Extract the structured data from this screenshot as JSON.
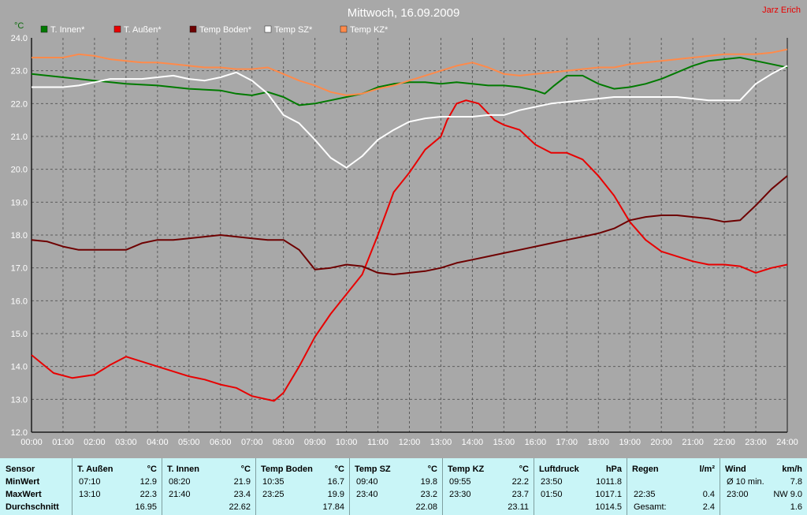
{
  "title": "Mittwoch, 16.09.2009",
  "author": "Jarz Erich",
  "chart_data": {
    "type": "line",
    "y_unit": "°C",
    "ylim": [
      12.0,
      24.0
    ],
    "yticks": [
      "12.0",
      "13.0",
      "14.0",
      "15.0",
      "16.0",
      "17.0",
      "18.0",
      "19.0",
      "20.0",
      "21.0",
      "22.0",
      "23.0",
      "24.0"
    ],
    "xlim": [
      0,
      24
    ],
    "xticks": [
      "00:00",
      "01:00",
      "02:00",
      "03:00",
      "04:00",
      "05:00",
      "06:00",
      "07:00",
      "08:00",
      "09:00",
      "10:00",
      "11:00",
      "12:00",
      "13:00",
      "14:00",
      "15:00",
      "16:00",
      "17:00",
      "18:00",
      "19:00",
      "20:00",
      "21:00",
      "22:00",
      "23:00",
      "24:00"
    ],
    "grid": true,
    "legend_position": "top",
    "series": [
      {
        "name": "T. Innen*",
        "color": "#007a00",
        "x": [
          0,
          1,
          2,
          3,
          4,
          5,
          6,
          6.5,
          7,
          7.5,
          8,
          8.5,
          9,
          9.5,
          10,
          10.5,
          11,
          11.5,
          12,
          12.5,
          13,
          13.5,
          14,
          14.5,
          15,
          15.5,
          16,
          16.3,
          16.6,
          17,
          17.5,
          18,
          18.5,
          19,
          19.5,
          20,
          20.5,
          21,
          21.5,
          22,
          22.5,
          23,
          23.5,
          24
        ],
        "y": [
          22.9,
          22.8,
          22.7,
          22.6,
          22.55,
          22.45,
          22.4,
          22.3,
          22.25,
          22.35,
          22.2,
          21.95,
          22.0,
          22.1,
          22.2,
          22.3,
          22.5,
          22.6,
          22.65,
          22.65,
          22.6,
          22.65,
          22.6,
          22.55,
          22.55,
          22.5,
          22.4,
          22.3,
          22.55,
          22.85,
          22.85,
          22.6,
          22.45,
          22.5,
          22.6,
          22.75,
          22.95,
          23.15,
          23.3,
          23.35,
          23.4,
          23.3,
          23.2,
          23.1
        ]
      },
      {
        "name": "T. Außen*",
        "color": "#e80000",
        "x": [
          0,
          0.7,
          1.3,
          2,
          2.5,
          3,
          3.5,
          4,
          4.5,
          5,
          5.5,
          6,
          6.5,
          7,
          7.7,
          8,
          8.5,
          9,
          9.5,
          10,
          10.5,
          11,
          11.5,
          12,
          12.5,
          13,
          13.2,
          13.5,
          13.8,
          14.2,
          14.7,
          15,
          15.5,
          16,
          16.5,
          17,
          17.5,
          18,
          18.5,
          19,
          19.5,
          20,
          20.5,
          21,
          21.5,
          22,
          22.5,
          23,
          23.5,
          24
        ],
        "y": [
          14.35,
          13.8,
          13.65,
          13.75,
          14.05,
          14.3,
          14.15,
          14.0,
          13.85,
          13.7,
          13.6,
          13.45,
          13.35,
          13.1,
          12.95,
          13.2,
          14.0,
          14.9,
          15.6,
          16.2,
          16.8,
          18.0,
          19.3,
          19.9,
          20.6,
          21.0,
          21.5,
          22.0,
          22.1,
          22.0,
          21.5,
          21.35,
          21.2,
          20.75,
          20.5,
          20.5,
          20.3,
          19.8,
          19.2,
          18.4,
          17.85,
          17.5,
          17.35,
          17.2,
          17.1,
          17.1,
          17.05,
          16.85,
          17.0,
          17.1
        ]
      },
      {
        "name": "Temp Boden*",
        "color": "#6e0000",
        "x": [
          0,
          0.5,
          1,
          1.5,
          2,
          2.5,
          3,
          3.5,
          4,
          4.5,
          5,
          5.5,
          6,
          6.5,
          7,
          7.5,
          8,
          8.5,
          9,
          9.5,
          10,
          10.5,
          11,
          11.5,
          12,
          12.5,
          13,
          13.5,
          14,
          14.5,
          15,
          15.5,
          16,
          16.5,
          17,
          17.5,
          18,
          18.5,
          19,
          19.5,
          20,
          20.5,
          21,
          21.5,
          22,
          22.5,
          23,
          23.5,
          24
        ],
        "y": [
          17.85,
          17.8,
          17.65,
          17.55,
          17.55,
          17.55,
          17.55,
          17.75,
          17.85,
          17.85,
          17.9,
          17.95,
          18.0,
          17.95,
          17.9,
          17.85,
          17.85,
          17.55,
          16.95,
          17.0,
          17.1,
          17.05,
          16.85,
          16.8,
          16.85,
          16.9,
          17.0,
          17.15,
          17.25,
          17.35,
          17.45,
          17.55,
          17.65,
          17.75,
          17.85,
          17.95,
          18.05,
          18.2,
          18.45,
          18.55,
          18.6,
          18.6,
          18.55,
          18.5,
          18.4,
          18.45,
          18.9,
          19.4,
          19.8
        ]
      },
      {
        "name": "Temp SZ*",
        "color": "#ffffff",
        "x": [
          0,
          0.5,
          1,
          1.5,
          2,
          2.5,
          3,
          3.5,
          4,
          4.5,
          5,
          5.5,
          6,
          6.5,
          7,
          7.5,
          8,
          8.5,
          9,
          9.5,
          10,
          10.5,
          11,
          11.5,
          12,
          12.5,
          13,
          13.5,
          14,
          14.5,
          15,
          15.5,
          16,
          16.5,
          17,
          17.5,
          18,
          18.5,
          19,
          19.5,
          20,
          20.5,
          21,
          21.5,
          22,
          22.5,
          23,
          23.5,
          24
        ],
        "y": [
          22.5,
          22.5,
          22.5,
          22.55,
          22.65,
          22.75,
          22.75,
          22.75,
          22.8,
          22.85,
          22.75,
          22.7,
          22.8,
          22.95,
          22.7,
          22.3,
          21.65,
          21.4,
          20.9,
          20.35,
          20.05,
          20.4,
          20.9,
          21.2,
          21.45,
          21.55,
          21.6,
          21.6,
          21.6,
          21.65,
          21.65,
          21.8,
          21.9,
          22.0,
          22.05,
          22.1,
          22.15,
          22.2,
          22.2,
          22.2,
          22.2,
          22.2,
          22.15,
          22.1,
          22.1,
          22.1,
          22.6,
          22.9,
          23.15
        ]
      },
      {
        "name": "Temp KZ*",
        "color": "#ff8a4a",
        "x": [
          0,
          0.5,
          1,
          1.5,
          2,
          2.5,
          3,
          3.5,
          4,
          4.5,
          5,
          5.5,
          6,
          6.5,
          7,
          7.5,
          8,
          8.5,
          9,
          9.5,
          10,
          10.5,
          11,
          11.5,
          12,
          12.5,
          13,
          13.5,
          14,
          14.5,
          15,
          15.5,
          16,
          16.5,
          17,
          17.5,
          18,
          18.5,
          19,
          19.5,
          20,
          20.5,
          21,
          21.5,
          22,
          22.5,
          23,
          23.5,
          24
        ],
        "y": [
          23.4,
          23.4,
          23.4,
          23.5,
          23.45,
          23.35,
          23.3,
          23.25,
          23.25,
          23.2,
          23.15,
          23.1,
          23.1,
          23.05,
          23.05,
          23.1,
          22.9,
          22.7,
          22.55,
          22.35,
          22.25,
          22.3,
          22.45,
          22.55,
          22.7,
          22.85,
          23.0,
          23.15,
          23.25,
          23.1,
          22.9,
          22.85,
          22.9,
          22.95,
          23.0,
          23.05,
          23.1,
          23.1,
          23.2,
          23.25,
          23.3,
          23.35,
          23.4,
          23.45,
          23.5,
          23.5,
          23.5,
          23.55,
          23.65
        ]
      }
    ]
  },
  "stats": {
    "row_labels": [
      "Sensor",
      "MinWert",
      "MaxWert",
      "Durchschnitt"
    ],
    "columns": [
      {
        "name": "T. Außen",
        "unit": "°C",
        "min_time": "07:10",
        "min": "12.9",
        "max_time": "13:10",
        "max": "22.3",
        "avg": "16.95"
      },
      {
        "name": "T. Innen",
        "unit": "°C",
        "min_time": "08:20",
        "min": "21.9",
        "max_time": "21:40",
        "max": "23.4",
        "avg": "22.62"
      },
      {
        "name": "Temp Boden",
        "unit": "°C",
        "min_time": "10:35",
        "min": "16.7",
        "max_time": "23:25",
        "max": "19.9",
        "avg": "17.84"
      },
      {
        "name": "Temp SZ",
        "unit": "°C",
        "min_time": "09:40",
        "min": "19.8",
        "max_time": "23:40",
        "max": "23.2",
        "avg": "22.08"
      },
      {
        "name": "Temp KZ",
        "unit": "°C",
        "min_time": "09:55",
        "min": "22.2",
        "max_time": "23:30",
        "max": "23.7",
        "avg": "23.11"
      },
      {
        "name": "Luftdruck",
        "unit": "hPa",
        "min_time": "23:50",
        "min": "1011.8",
        "max_time": "01:50",
        "max": "1017.1",
        "avg": "1014.5"
      },
      {
        "name": "Regen",
        "unit": "l/m²",
        "min_time": "",
        "min": "",
        "max_time": "22:35",
        "max": "0.4",
        "avg_label": "Gesamt:",
        "avg": "2.4"
      },
      {
        "name": "Wind",
        "unit": "km/h",
        "min_time": "Ø 10 min.",
        "min": "7.8",
        "max_time": "23:00",
        "max": "NW 9.0",
        "avg": "1.6"
      }
    ]
  }
}
